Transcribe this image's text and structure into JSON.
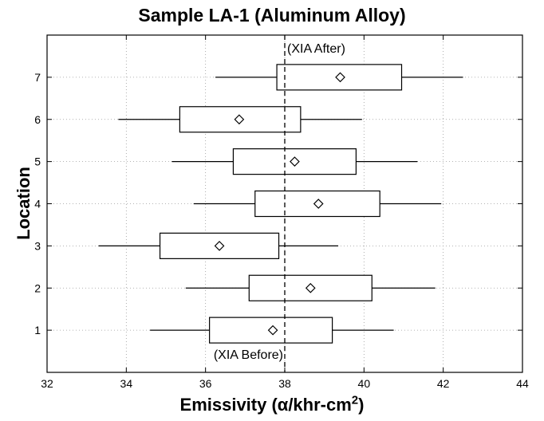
{
  "chart_data": {
    "type": "box",
    "orientation": "horizontal",
    "title": "Sample LA-1 (Aluminum Alloy)",
    "xlabel": "Emissivity (α/khr-cm²)",
    "ylabel": "Location",
    "xlim": [
      32,
      44
    ],
    "ylim": [
      0,
      8
    ],
    "xticks": [
      32,
      34,
      36,
      38,
      40,
      42,
      44
    ],
    "yticks": [
      1,
      2,
      3,
      4,
      5,
      6,
      7
    ],
    "grid": true,
    "reference_line": {
      "x": 38
    },
    "annotations": [
      "(XIA After)",
      "(XIA Before)"
    ],
    "boxes": [
      {
        "location": 1,
        "whisker_low": 34.6,
        "q1": 36.1,
        "q3": 39.2,
        "whisker_high": 40.75,
        "mean": 37.7
      },
      {
        "location": 2,
        "whisker_low": 35.5,
        "q1": 37.1,
        "q3": 40.2,
        "whisker_high": 41.8,
        "mean": 38.65
      },
      {
        "location": 3,
        "whisker_low": 33.3,
        "q1": 34.85,
        "q3": 37.85,
        "whisker_high": 39.35,
        "mean": 36.35
      },
      {
        "location": 4,
        "whisker_low": 35.7,
        "q1": 37.25,
        "q3": 40.4,
        "whisker_high": 41.95,
        "mean": 38.85
      },
      {
        "location": 5,
        "whisker_low": 35.15,
        "q1": 36.7,
        "q3": 39.8,
        "whisker_high": 41.35,
        "mean": 38.25
      },
      {
        "location": 6,
        "whisker_low": 33.8,
        "q1": 35.35,
        "q3": 38.4,
        "whisker_high": 39.95,
        "mean": 36.85
      },
      {
        "location": 7,
        "whisker_low": 36.25,
        "q1": 37.8,
        "q3": 40.95,
        "whisker_high": 42.5,
        "mean": 39.4
      }
    ]
  }
}
